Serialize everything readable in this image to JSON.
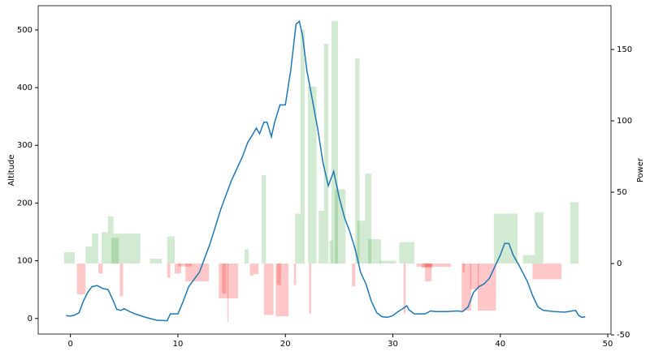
{
  "chart_data": {
    "type": "line-bar-combo",
    "y_label": "Altitude",
    "y2_label": "Power",
    "xlim": [
      -3.0,
      50.3
    ],
    "xticks": [
      0,
      10,
      20,
      30,
      40,
      50
    ],
    "ylim": [
      -27,
      542
    ],
    "yticks": [
      0,
      100,
      200,
      300,
      400,
      500
    ],
    "y2lim": [
      -49.4,
      180.7
    ],
    "y2ticks": [
      -50,
      0,
      50,
      100,
      150
    ],
    "line": {
      "color": "#1f77b4",
      "x": [
        -0.4,
        0,
        0.4,
        0.8,
        1.2,
        1.6,
        2,
        2.5,
        3,
        3.5,
        4,
        4.3,
        4.7,
        5,
        5.5,
        6,
        7,
        8,
        9,
        9.3,
        10,
        10.5,
        11,
        12,
        13,
        14,
        15,
        16,
        16.5,
        17,
        17.3,
        17.6,
        18,
        18.3,
        18.7,
        19,
        19.5,
        20,
        20.5,
        21,
        21.3,
        21.6,
        22,
        22.5,
        23,
        23.5,
        24,
        24.5,
        25,
        25.5,
        26,
        26.5,
        27,
        27.5,
        28,
        28.5,
        29,
        29.5,
        30,
        30.5,
        31,
        31.3,
        31.5,
        32,
        33,
        33.5,
        34,
        35,
        36,
        36.5,
        37,
        37.5,
        38,
        38.5,
        39,
        39.5,
        40,
        40.4,
        40.8,
        41.2,
        41.8,
        42.5,
        43,
        43.5,
        44,
        45,
        46,
        47,
        47.3,
        47.6,
        47.9
      ],
      "values": [
        5,
        4,
        6,
        10,
        30,
        45,
        55,
        57,
        52,
        50,
        30,
        16,
        14,
        17,
        12,
        8,
        2,
        -3,
        -4,
        8,
        8,
        30,
        55,
        80,
        130,
        190,
        240,
        280,
        305,
        320,
        330,
        320,
        340,
        340,
        315,
        340,
        370,
        370,
        430,
        510,
        515,
        490,
        430,
        380,
        330,
        270,
        230,
        255,
        210,
        175,
        150,
        120,
        80,
        60,
        30,
        10,
        3,
        2,
        5,
        12,
        18,
        22,
        15,
        8,
        8,
        13,
        12,
        12,
        13,
        12,
        20,
        45,
        55,
        60,
        70,
        90,
        110,
        130,
        130,
        110,
        90,
        65,
        40,
        20,
        14,
        12,
        11,
        14,
        5,
        2,
        3
      ]
    },
    "bars": {
      "axis": "y2",
      "color_positive": "#2ca02c",
      "color_negative": "#ff0000",
      "x": [
        -0.6,
        1.4,
        2.0,
        2.9,
        3.5,
        3.8,
        4.0,
        7.4,
        9.0,
        16.2,
        17.8,
        20.9,
        21.4,
        22.1,
        23.1,
        23.6,
        24.1,
        24.3,
        24.6,
        26.5,
        26.7,
        27.4,
        27.7,
        28.8,
        30.6,
        39.4,
        42.1,
        43.2,
        46.5,
        0.6,
        2.6,
        4.6,
        9.0,
        9.7,
        10.0,
        10.7,
        13.8,
        14.1,
        14.6,
        16.7,
        17.0,
        18.0,
        19.1,
        19.2,
        20.8,
        22.2,
        26.2,
        31.0,
        32.2,
        32.7,
        33.0,
        36.4,
        36.5,
        37.2,
        37.9,
        43.0
      ],
      "widths": [
        1.0,
        0.6,
        0.6,
        0.6,
        0.5,
        0.7,
        2.5,
        1.1,
        0.7,
        0.4,
        0.4,
        0.5,
        0.4,
        0.8,
        0.5,
        0.4,
        0.3,
        0.6,
        1.0,
        0.4,
        0.7,
        0.6,
        1.2,
        1.5,
        1.4,
        2.2,
        1.1,
        0.8,
        0.8,
        0.8,
        0.4,
        0.3,
        0.3,
        0.6,
        1.3,
        2.2,
        1.8,
        0.4,
        0.1,
        0.3,
        0.5,
        0.9,
        1.2,
        0.4,
        0.2,
        0.2,
        0.3,
        0.2,
        3.2,
        1.0,
        0.6,
        0.9,
        0.2,
        0.8,
        1.7,
        2.7
      ],
      "values": [
        8,
        12,
        21,
        22,
        33,
        18,
        21,
        3.4,
        19,
        10,
        62,
        35,
        164,
        124,
        37,
        154,
        16,
        170,
        52,
        144,
        30,
        63,
        17,
        2,
        15,
        35,
        6,
        36,
        43,
        -21.6,
        -7,
        -23,
        -10,
        -7,
        -2,
        -12.5,
        -24.4,
        -21,
        -41,
        -8.5,
        -7.4,
        -36,
        -37,
        -15,
        -15,
        -35,
        -16,
        -35,
        -2.3,
        -3,
        -12.5,
        -33,
        -6,
        -18,
        -33,
        -11
      ]
    }
  }
}
